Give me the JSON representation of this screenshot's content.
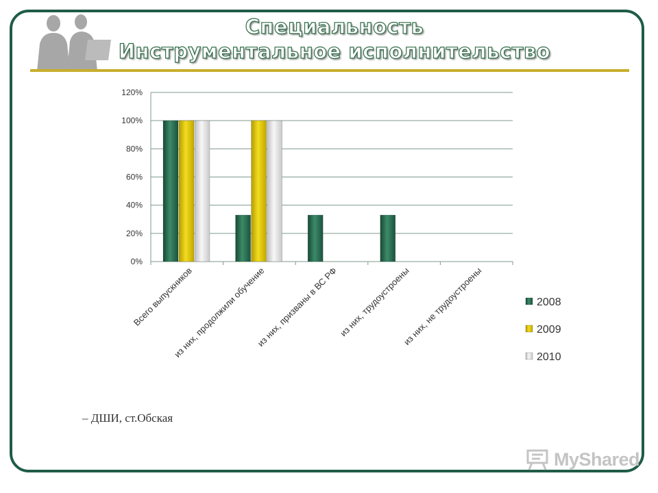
{
  "title": {
    "line1": "Специальность",
    "line2": "Инструментальное  исполнительство"
  },
  "footnote": "– ДШИ, ст.Обская",
  "logo": {
    "text": "MyShared"
  },
  "colors": {
    "frame": "#1f5c48",
    "rule": "#c8ad2a",
    "s2008": "#2a6e52",
    "s2009": "#e6cc00",
    "s2010": "#e4e4e4"
  },
  "chart_data": {
    "type": "bar",
    "title": "",
    "xlabel": "",
    "ylabel": "",
    "ylim": [
      0,
      120
    ],
    "yticks": [
      "0%",
      "20%",
      "40%",
      "60%",
      "80%",
      "100%",
      "120%"
    ],
    "categories": [
      "Всего выпускников",
      "из них, продолжили обучение",
      "из них, призваны в ВС РФ",
      "из них, трудоустроены",
      "из них, не трудоустроены"
    ],
    "series": [
      {
        "name": "2008",
        "color": "#2a6e52",
        "values": [
          100,
          33,
          33,
          33,
          0
        ]
      },
      {
        "name": "2009",
        "color": "#e6cc00",
        "values": [
          100,
          100,
          0,
          0,
          0
        ]
      },
      {
        "name": "2010",
        "color": "#e4e4e4",
        "values": [
          100,
          100,
          0,
          0,
          0
        ]
      }
    ],
    "legend_position": "right"
  }
}
